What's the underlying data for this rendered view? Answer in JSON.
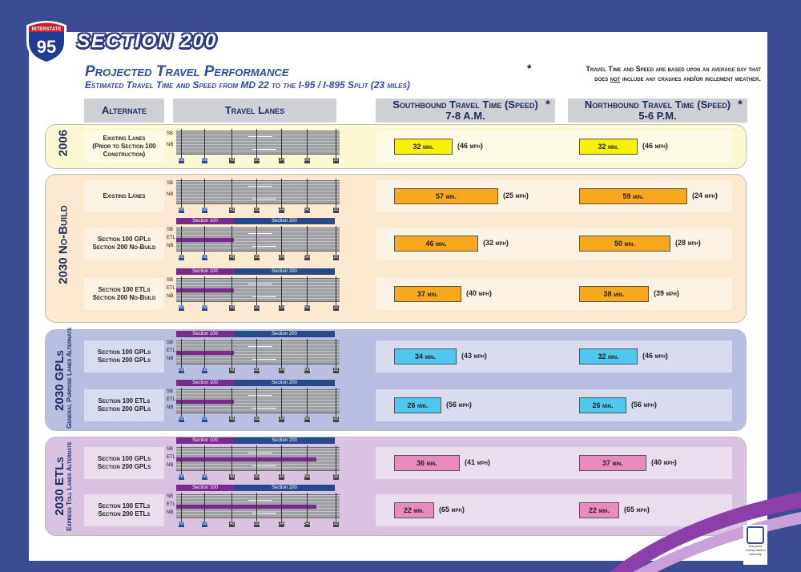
{
  "header": {
    "shield_top": "INTERSTATE",
    "shield_num": "95",
    "section": "SECTION 200",
    "title": "Projected Travel Performance",
    "subtitle": "Estimated Travel Time and Speed from MD 22 to the I-95 / I-895 Split (23 miles)",
    "note_star": "*",
    "note_line1": "Travel Time and Speed are based upon an average day that",
    "note_line2_pre": "does ",
    "note_line2_not": "not",
    "note_line2_post": " include any crashes and/or inclement weather."
  },
  "columns": {
    "alternate": "Alternate",
    "lanes": "Travel Lanes",
    "sb_line1": "Southbound Travel Time (Speed)",
    "sb_line2": "7-8 A.M.",
    "nb_line1": "Northbound Travel Time (Speed)",
    "nb_line2": "5-6 P.M.",
    "star": "*"
  },
  "road_labels": {
    "sb": "SB",
    "nb": "NB",
    "etl": "ETL",
    "sec100": "Section 100",
    "sec200": "Section 200"
  },
  "exit_labels": [
    "895",
    "695",
    "43",
    "152",
    "24",
    "543",
    "22"
  ],
  "sections": [
    {
      "label": "2006",
      "sublabel": "",
      "color": "#fbf8d2",
      "bar_color": "#f6f200",
      "rows": [
        {
          "alt": [
            "Existing Lanes",
            "(Prior to Section 100",
            "Construction)"
          ],
          "type": "existing",
          "sb_time": "32 min.",
          "sb_speed": "(46 mph)",
          "sb_minutes": 32,
          "nb_time": "32 min.",
          "nb_speed": "(46 mph)",
          "nb_minutes": 32
        }
      ]
    },
    {
      "label": "2030 No-Build",
      "sublabel": "",
      "color": "#fbead0",
      "bar_color": "#f8a81c",
      "rows": [
        {
          "alt": [
            "Existing Lanes"
          ],
          "type": "existing",
          "sb_time": "57 min.",
          "sb_speed": "(25 mph)",
          "sb_minutes": 57,
          "nb_time": "59 min.",
          "nb_speed": "(24 mph)",
          "nb_minutes": 59
        },
        {
          "alt": [
            "Section 100 GPLs",
            "Section 200 No-Build"
          ],
          "type": "gpl",
          "sb_time": "46 min.",
          "sb_speed": "(32 mph)",
          "sb_minutes": 46,
          "nb_time": "50 min.",
          "nb_speed": "(28 mph)",
          "nb_minutes": 50
        },
        {
          "alt": [
            "Section 100 ETLs",
            "Section 200 No-Build"
          ],
          "type": "etl100",
          "sb_time": "37 min.",
          "sb_speed": "(40 mph)",
          "sb_minutes": 37,
          "nb_time": "38 min.",
          "nb_speed": "(39 mph)",
          "nb_minutes": 38
        }
      ]
    },
    {
      "label": "2030 GPLs",
      "sublabel": "General Purpose Lanes Alternate",
      "color": "#b9bfe0",
      "bar_color": "#4fc8ee",
      "rows": [
        {
          "alt": [
            "Section 100 GPLs",
            "Section 200 GPLs"
          ],
          "type": "gpl",
          "sb_time": "34 min.",
          "sb_speed": "(43 mph)",
          "sb_minutes": 34,
          "nb_time": "32 min.",
          "nb_speed": "(46 mph)",
          "nb_minutes": 32
        },
        {
          "alt": [
            "Section 100 ETLs",
            "Section 200 GPLs"
          ],
          "type": "etl100",
          "sb_time": "26 min.",
          "sb_speed": "(56 mph)",
          "sb_minutes": 26,
          "nb_time": "26 min.",
          "nb_speed": "(56 mph)",
          "nb_minutes": 26
        }
      ]
    },
    {
      "label": "2030 ETLs",
      "sublabel": "Express Toll Lanes Alternate",
      "color": "#d9c3e0",
      "bar_color": "#e98bbf",
      "rows": [
        {
          "alt": [
            "Section 100 GPLs",
            "Section 200 GPLs"
          ],
          "type": "etlfull",
          "sb_time": "36 min.",
          "sb_speed": "(41 mph)",
          "sb_minutes": 36,
          "nb_time": "37 min.",
          "nb_speed": "(40 mph)",
          "nb_minutes": 37
        },
        {
          "alt": [
            "Section 100 ETLs",
            "Section 200 ETLs"
          ],
          "type": "etlfull",
          "sb_time": "22 min.",
          "sb_speed": "(65 mph)",
          "sb_minutes": 22,
          "nb_time": "22 min.",
          "nb_speed": "(65 mph)",
          "nb_minutes": 22
        }
      ]
    }
  ],
  "logo": {
    "line1": "Maryland",
    "line2": "Transportation",
    "line3": "Authority"
  }
}
